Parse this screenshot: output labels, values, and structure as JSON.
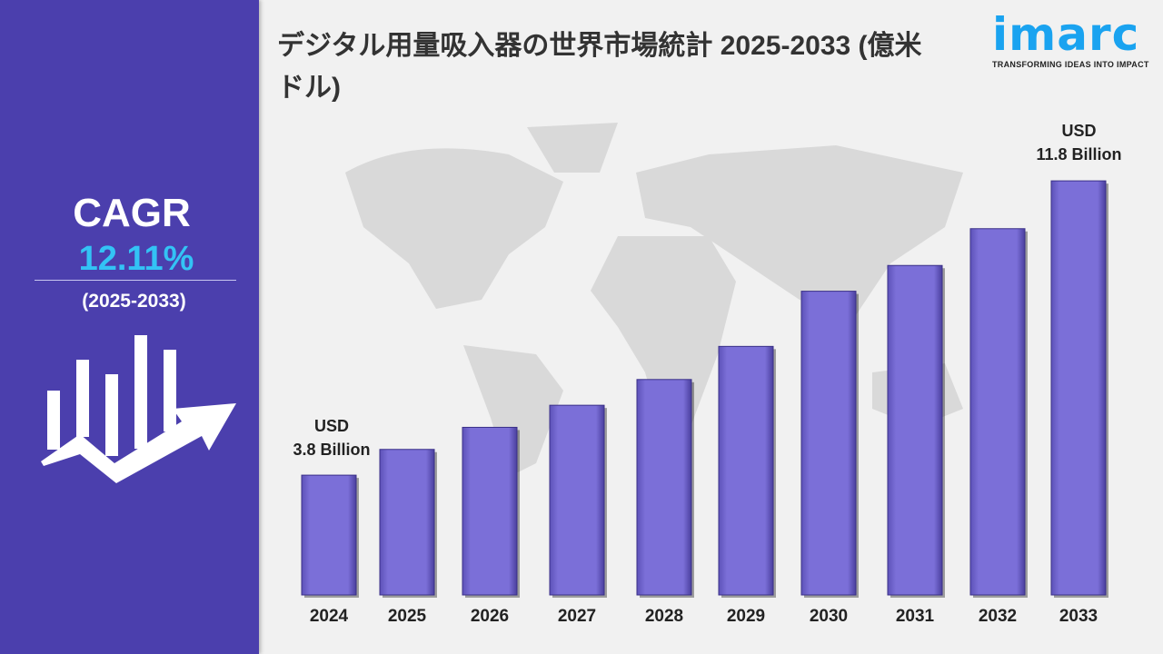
{
  "title": "デジタル用量吸入器の世界市場統計 2025-2033 (億米ドル)",
  "logo": {
    "name": "imarc",
    "tagline": "TRANSFORMING IDEAS INTO IMPACT",
    "color": "#1aa3f0"
  },
  "cagr": {
    "label": "CAGR",
    "value": "12.11%",
    "period": "(2025-2033)"
  },
  "colors": {
    "panel": "#4b3fad",
    "bar": "#7b6fd8",
    "cagr_value": "#33c3f5"
  },
  "chart_data": {
    "type": "bar",
    "title": "デジタル用量吸入器の世界市場統計 2025-2033 (億米ドル)",
    "categories": [
      "2024",
      "2025",
      "2026",
      "2027",
      "2028",
      "2029",
      "2030",
      "2031",
      "2032",
      "2033"
    ],
    "values": [
      3.8,
      4.5,
      5.1,
      5.7,
      6.4,
      7.3,
      8.8,
      9.5,
      10.5,
      11.8
    ],
    "annotations": [
      {
        "category": "2024",
        "line1": "USD",
        "line2": "3.8 Billion"
      },
      {
        "category": "2033",
        "line1": "USD",
        "line2": "11.8 Billion"
      }
    ],
    "grid": false
  }
}
